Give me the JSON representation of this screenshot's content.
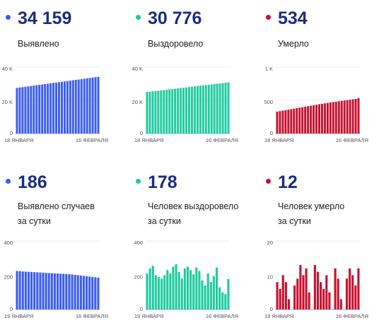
{
  "chart_data": [
    {
      "type": "bar",
      "headline": "34 159",
      "label": [
        "Выявлено"
      ],
      "color": "#3a5cf4",
      "categories": [
        "18 ЯНВАРЯ",
        null,
        null,
        null,
        null,
        null,
        null,
        null,
        null,
        null,
        null,
        null,
        null,
        null,
        null,
        null,
        null,
        null,
        null,
        null,
        null,
        null,
        null,
        null,
        null,
        null,
        null,
        null,
        null,
        "16 ФЕВРАЛЯ"
      ],
      "values": [
        27500,
        27730,
        27960,
        28190,
        28420,
        28650,
        28880,
        29110,
        29340,
        29570,
        29800,
        30030,
        30260,
        30490,
        30720,
        30950,
        31180,
        31410,
        31640,
        31870,
        32100,
        32330,
        32560,
        32790,
        33020,
        33250,
        33480,
        33710,
        33973,
        34159
      ],
      "ylim": [
        0,
        40000
      ],
      "yticks": [
        0,
        {
          "value": 20000,
          "label": "20 K"
        },
        {
          "value": 40000,
          "label": "40 K"
        }
      ]
    },
    {
      "type": "bar",
      "headline": "30 776",
      "label": [
        "Выздоровело"
      ],
      "color": "#1ecb9e",
      "categories": [
        "18 ЯНВАРЯ",
        null,
        null,
        null,
        null,
        null,
        null,
        null,
        null,
        null,
        null,
        null,
        null,
        null,
        null,
        null,
        null,
        null,
        null,
        null,
        null,
        null,
        null,
        null,
        null,
        null,
        null,
        null,
        null,
        "16 ФЕВРАЛЯ"
      ],
      "values": [
        25000,
        25200,
        25400,
        25600,
        25800,
        26000,
        26200,
        26400,
        26600,
        26800,
        27000,
        27200,
        27400,
        27600,
        27800,
        28000,
        28200,
        28400,
        28600,
        28800,
        29000,
        29200,
        29400,
        29600,
        29800,
        30000,
        30200,
        30400,
        30598,
        30776
      ],
      "ylim": [
        0,
        40000
      ],
      "yticks": [
        0,
        {
          "value": 20000,
          "label": "20 K"
        },
        {
          "value": 40000,
          "label": "40 K"
        }
      ]
    },
    {
      "type": "bar",
      "headline": "534",
      "label": [
        "Умерло"
      ],
      "color": "#c8102e",
      "categories": [
        "18 ЯНВАРЯ",
        null,
        null,
        null,
        null,
        null,
        null,
        null,
        null,
        null,
        null,
        null,
        null,
        null,
        null,
        null,
        null,
        null,
        null,
        null,
        null,
        null,
        null,
        null,
        null,
        null,
        null,
        null,
        null,
        "16 ФЕВРАЛЯ"
      ],
      "values": [
        330,
        338,
        345,
        352,
        360,
        368,
        375,
        383,
        390,
        398,
        405,
        412,
        420,
        427,
        434,
        441,
        448,
        455,
        462,
        468,
        474,
        480,
        486,
        492,
        498,
        504,
        510,
        516,
        522,
        534
      ],
      "ylim": [
        0,
        1000
      ],
      "yticks": [
        0,
        500,
        {
          "value": 1000,
          "label": "1 K"
        }
      ]
    },
    {
      "type": "bar",
      "headline": "186",
      "label": [
        "Выявлено случаев",
        "за сутки"
      ],
      "color": "#3a5cf4",
      "categories": [
        "19 ЯНВАРЯ",
        null,
        null,
        null,
        null,
        null,
        null,
        null,
        null,
        null,
        null,
        null,
        null,
        null,
        null,
        null,
        null,
        null,
        null,
        null,
        null,
        null,
        null,
        null,
        null,
        null,
        null,
        null,
        "16 ФЕВРАЛЯ"
      ],
      "values": [
        225,
        224,
        222,
        221,
        220,
        219,
        218,
        217,
        216,
        215,
        214,
        213,
        212,
        211,
        210,
        209,
        208,
        207,
        206,
        204,
        202,
        200,
        198,
        196,
        194,
        192,
        190,
        188,
        186
      ],
      "ylim": [
        0,
        400
      ],
      "yticks": [
        0,
        200,
        400
      ]
    },
    {
      "type": "bar",
      "headline": "178",
      "label": [
        "Человек выздоровело",
        "за сутки"
      ],
      "color": "#1ecb9e",
      "categories": [
        "19 ЯНВАРЯ",
        null,
        null,
        null,
        null,
        null,
        null,
        null,
        null,
        null,
        null,
        null,
        null,
        null,
        null,
        null,
        null,
        null,
        null,
        null,
        null,
        null,
        null,
        null,
        null,
        null,
        null,
        null,
        "16 ФЕВРАЛЯ"
      ],
      "values": [
        210,
        240,
        255,
        200,
        190,
        180,
        200,
        230,
        210,
        250,
        265,
        220,
        180,
        240,
        250,
        230,
        205,
        245,
        225,
        170,
        140,
        210,
        160,
        195,
        245,
        130,
        100,
        90,
        178
      ],
      "ylim": [
        0,
        400
      ],
      "yticks": [
        0,
        200,
        400
      ]
    },
    {
      "type": "bar",
      "headline": "12",
      "label": [
        "Человек умерло",
        "за сутки"
      ],
      "color": "#c8102e",
      "categories": [
        "19 ЯНВАРЯ",
        null,
        null,
        null,
        null,
        null,
        null,
        null,
        null,
        null,
        null,
        null,
        null,
        null,
        null,
        null,
        null,
        null,
        null,
        null,
        null,
        null,
        null,
        null,
        null,
        null,
        null,
        null,
        "16 ФЕВРАЛЯ"
      ],
      "values": [
        8,
        6,
        10,
        8,
        3,
        0,
        7,
        9,
        13,
        10,
        12,
        5,
        0,
        13,
        11,
        8,
        6,
        10,
        5,
        0,
        12,
        9,
        3,
        0,
        9,
        12,
        10,
        7,
        12
      ],
      "ylim": [
        0,
        20
      ],
      "yticks": [
        0,
        10,
        20
      ]
    }
  ]
}
